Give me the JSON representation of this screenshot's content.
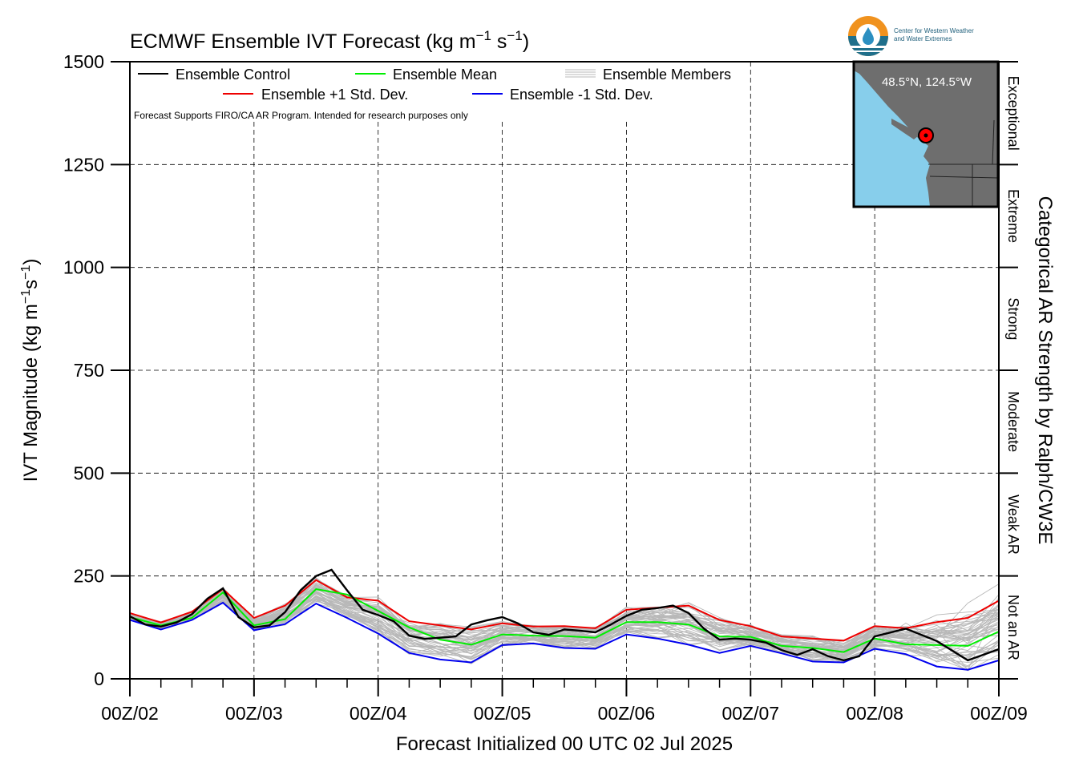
{
  "title": "ECMWF Ensemble IVT Forecast (kg m",
  "title_exp1": "−1",
  "title_mid": " s",
  "title_exp2": "−1",
  "title_end": ")",
  "ylabel": "IVT Magnitude (kg m",
  "ylabel_exp1": "−1",
  "ylabel_mid": "s",
  "ylabel_exp2": "−1",
  "ylabel_end": ")",
  "xlabel": "Forecast Initialized 00 UTC 02 Jul 2025",
  "right_label": "Categorical AR Strength by Ralph/CW3E",
  "note": "Forecast Supports FIRO/CA AR Program. Intended for research purposes only",
  "logo": {
    "line1": "Center for Western Weather",
    "line2": "and Water Extremes",
    "icon": "water-drop-logo-icon"
  },
  "inset": {
    "label": "48.5°N, 124.5°W",
    "marker_color": "#ff0000",
    "ocean_color": "#87ceeb",
    "land_color": "#6e6e6e"
  },
  "legend": [
    {
      "name": "Ensemble Control",
      "color": "#000000"
    },
    {
      "name": "Ensemble Mean",
      "color": "#00ee00"
    },
    {
      "name": "Ensemble Members",
      "color": "#b8b8b8"
    },
    {
      "name": "Ensemble +1 Std. Dev.",
      "color": "#ee0000"
    },
    {
      "name": "Ensemble -1 Std. Dev.",
      "color": "#0000ee"
    }
  ],
  "categories": [
    {
      "label": "Not an AR",
      "from": 0,
      "to": 250
    },
    {
      "label": "Weak AR",
      "from": 250,
      "to": 500
    },
    {
      "label": "Moderate",
      "from": 500,
      "to": 750
    },
    {
      "label": "Strong",
      "from": 750,
      "to": 1000
    },
    {
      "label": "Extreme",
      "from": 1000,
      "to": 1250
    },
    {
      "label": "Exceptional",
      "from": 1250,
      "to": 1500
    }
  ],
  "chart_data": {
    "type": "line",
    "title": "ECMWF Ensemble IVT Forecast (kg m−1 s−1)",
    "xlabel": "Forecast Initialized 00 UTC 02 Jul 2025",
    "ylabel": "IVT Magnitude (kg m−1s−1)",
    "ylim": [
      0,
      1500
    ],
    "xlim": [
      0,
      168
    ],
    "x_unit": "hours",
    "grid": true,
    "legend_position": "top-left",
    "x_tick_labels": [
      "00Z/02",
      "00Z/03",
      "00Z/04",
      "00Z/05",
      "00Z/06",
      "00Z/07",
      "00Z/08",
      "00Z/09"
    ],
    "x_tick_hours": [
      0,
      24,
      48,
      72,
      96,
      120,
      144,
      168
    ],
    "y_ticks": [
      0,
      250,
      500,
      750,
      1000,
      1250,
      1500
    ],
    "series": [
      {
        "name": "Ensemble Control",
        "color": "#000000",
        "x": [
          0,
          3,
          6,
          9,
          12,
          15,
          18,
          21,
          24,
          27,
          30,
          33,
          36,
          39,
          42,
          45,
          48,
          51,
          54,
          57,
          60,
          63,
          66,
          69,
          72,
          75,
          78,
          81,
          84,
          87,
          90,
          93,
          96,
          99,
          102,
          105,
          108,
          111,
          114,
          117,
          120,
          123,
          126,
          129,
          132,
          135,
          138,
          141,
          144,
          150,
          156,
          162,
          168
        ],
        "y": [
          152,
          132,
          127,
          137,
          157,
          195,
          220,
          150,
          125,
          130,
          162,
          215,
          250,
          265,
          215,
          168,
          155,
          140,
          105,
          97,
          100,
          103,
          132,
          142,
          150,
          135,
          113,
          107,
          120,
          117,
          113,
          132,
          153,
          168,
          172,
          178,
          160,
          122,
          95,
          98,
          95,
          88,
          70,
          58,
          72,
          55,
          45,
          55,
          103,
          122,
          92,
          45,
          72
        ]
      },
      {
        "name": "Ensemble Mean",
        "color": "#00ee00",
        "x": [
          0,
          6,
          12,
          18,
          24,
          30,
          36,
          42,
          48,
          54,
          60,
          66,
          72,
          78,
          84,
          90,
          96,
          102,
          108,
          114,
          120,
          126,
          132,
          138,
          144,
          150,
          156,
          162,
          168
        ],
        "y": [
          150,
          130,
          148,
          210,
          130,
          145,
          218,
          205,
          165,
          125,
          95,
          83,
          108,
          105,
          104,
          100,
          138,
          138,
          132,
          103,
          102,
          80,
          75,
          65,
          98,
          84,
          82,
          80,
          115
        ]
      },
      {
        "name": "Ensemble +1 Std. Dev.",
        "color": "#ee0000",
        "x": [
          0,
          6,
          12,
          18,
          24,
          30,
          36,
          42,
          48,
          54,
          60,
          66,
          72,
          78,
          84,
          90,
          96,
          102,
          108,
          114,
          120,
          126,
          132,
          138,
          144,
          150,
          156,
          162,
          168
        ],
        "y": [
          160,
          137,
          163,
          218,
          148,
          178,
          240,
          198,
          190,
          140,
          130,
          120,
          135,
          127,
          128,
          123,
          168,
          173,
          178,
          143,
          128,
          103,
          98,
          93,
          128,
          123,
          138,
          148,
          190
        ]
      },
      {
        "name": "Ensemble -1 Std. Dev.",
        "color": "#0000ee",
        "x": [
          0,
          6,
          12,
          18,
          24,
          30,
          36,
          42,
          48,
          54,
          60,
          66,
          72,
          78,
          84,
          90,
          96,
          102,
          108,
          114,
          120,
          126,
          132,
          138,
          144,
          150,
          156,
          162,
          168
        ],
        "y": [
          143,
          120,
          143,
          185,
          118,
          133,
          183,
          148,
          110,
          63,
          47,
          40,
          82,
          86,
          75,
          73,
          108,
          98,
          83,
          63,
          80,
          62,
          42,
          40,
          73,
          60,
          30,
          22,
          45
        ]
      }
    ]
  }
}
